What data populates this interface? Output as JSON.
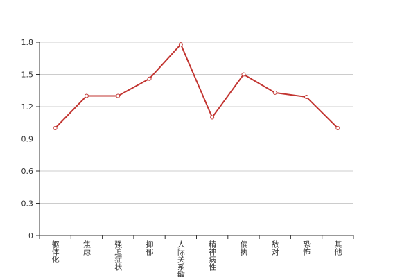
{
  "chart_data": {
    "type": "line",
    "categories": [
      "躯体化",
      "焦虑",
      "强迫症状",
      "抑郁",
      "人际关系敏感",
      "精神病性",
      "偏执",
      "敌对",
      "恐怖",
      "其他"
    ],
    "values": [
      1.0,
      1.3,
      1.3,
      1.46,
      1.78,
      1.1,
      1.5,
      1.33,
      1.29,
      1.0
    ],
    "color": "#c23531",
    "ylim": [
      0,
      1.8
    ],
    "yticks": [
      0,
      0.3,
      0.6,
      0.9,
      1.2,
      1.5,
      1.8
    ],
    "grid": true
  }
}
